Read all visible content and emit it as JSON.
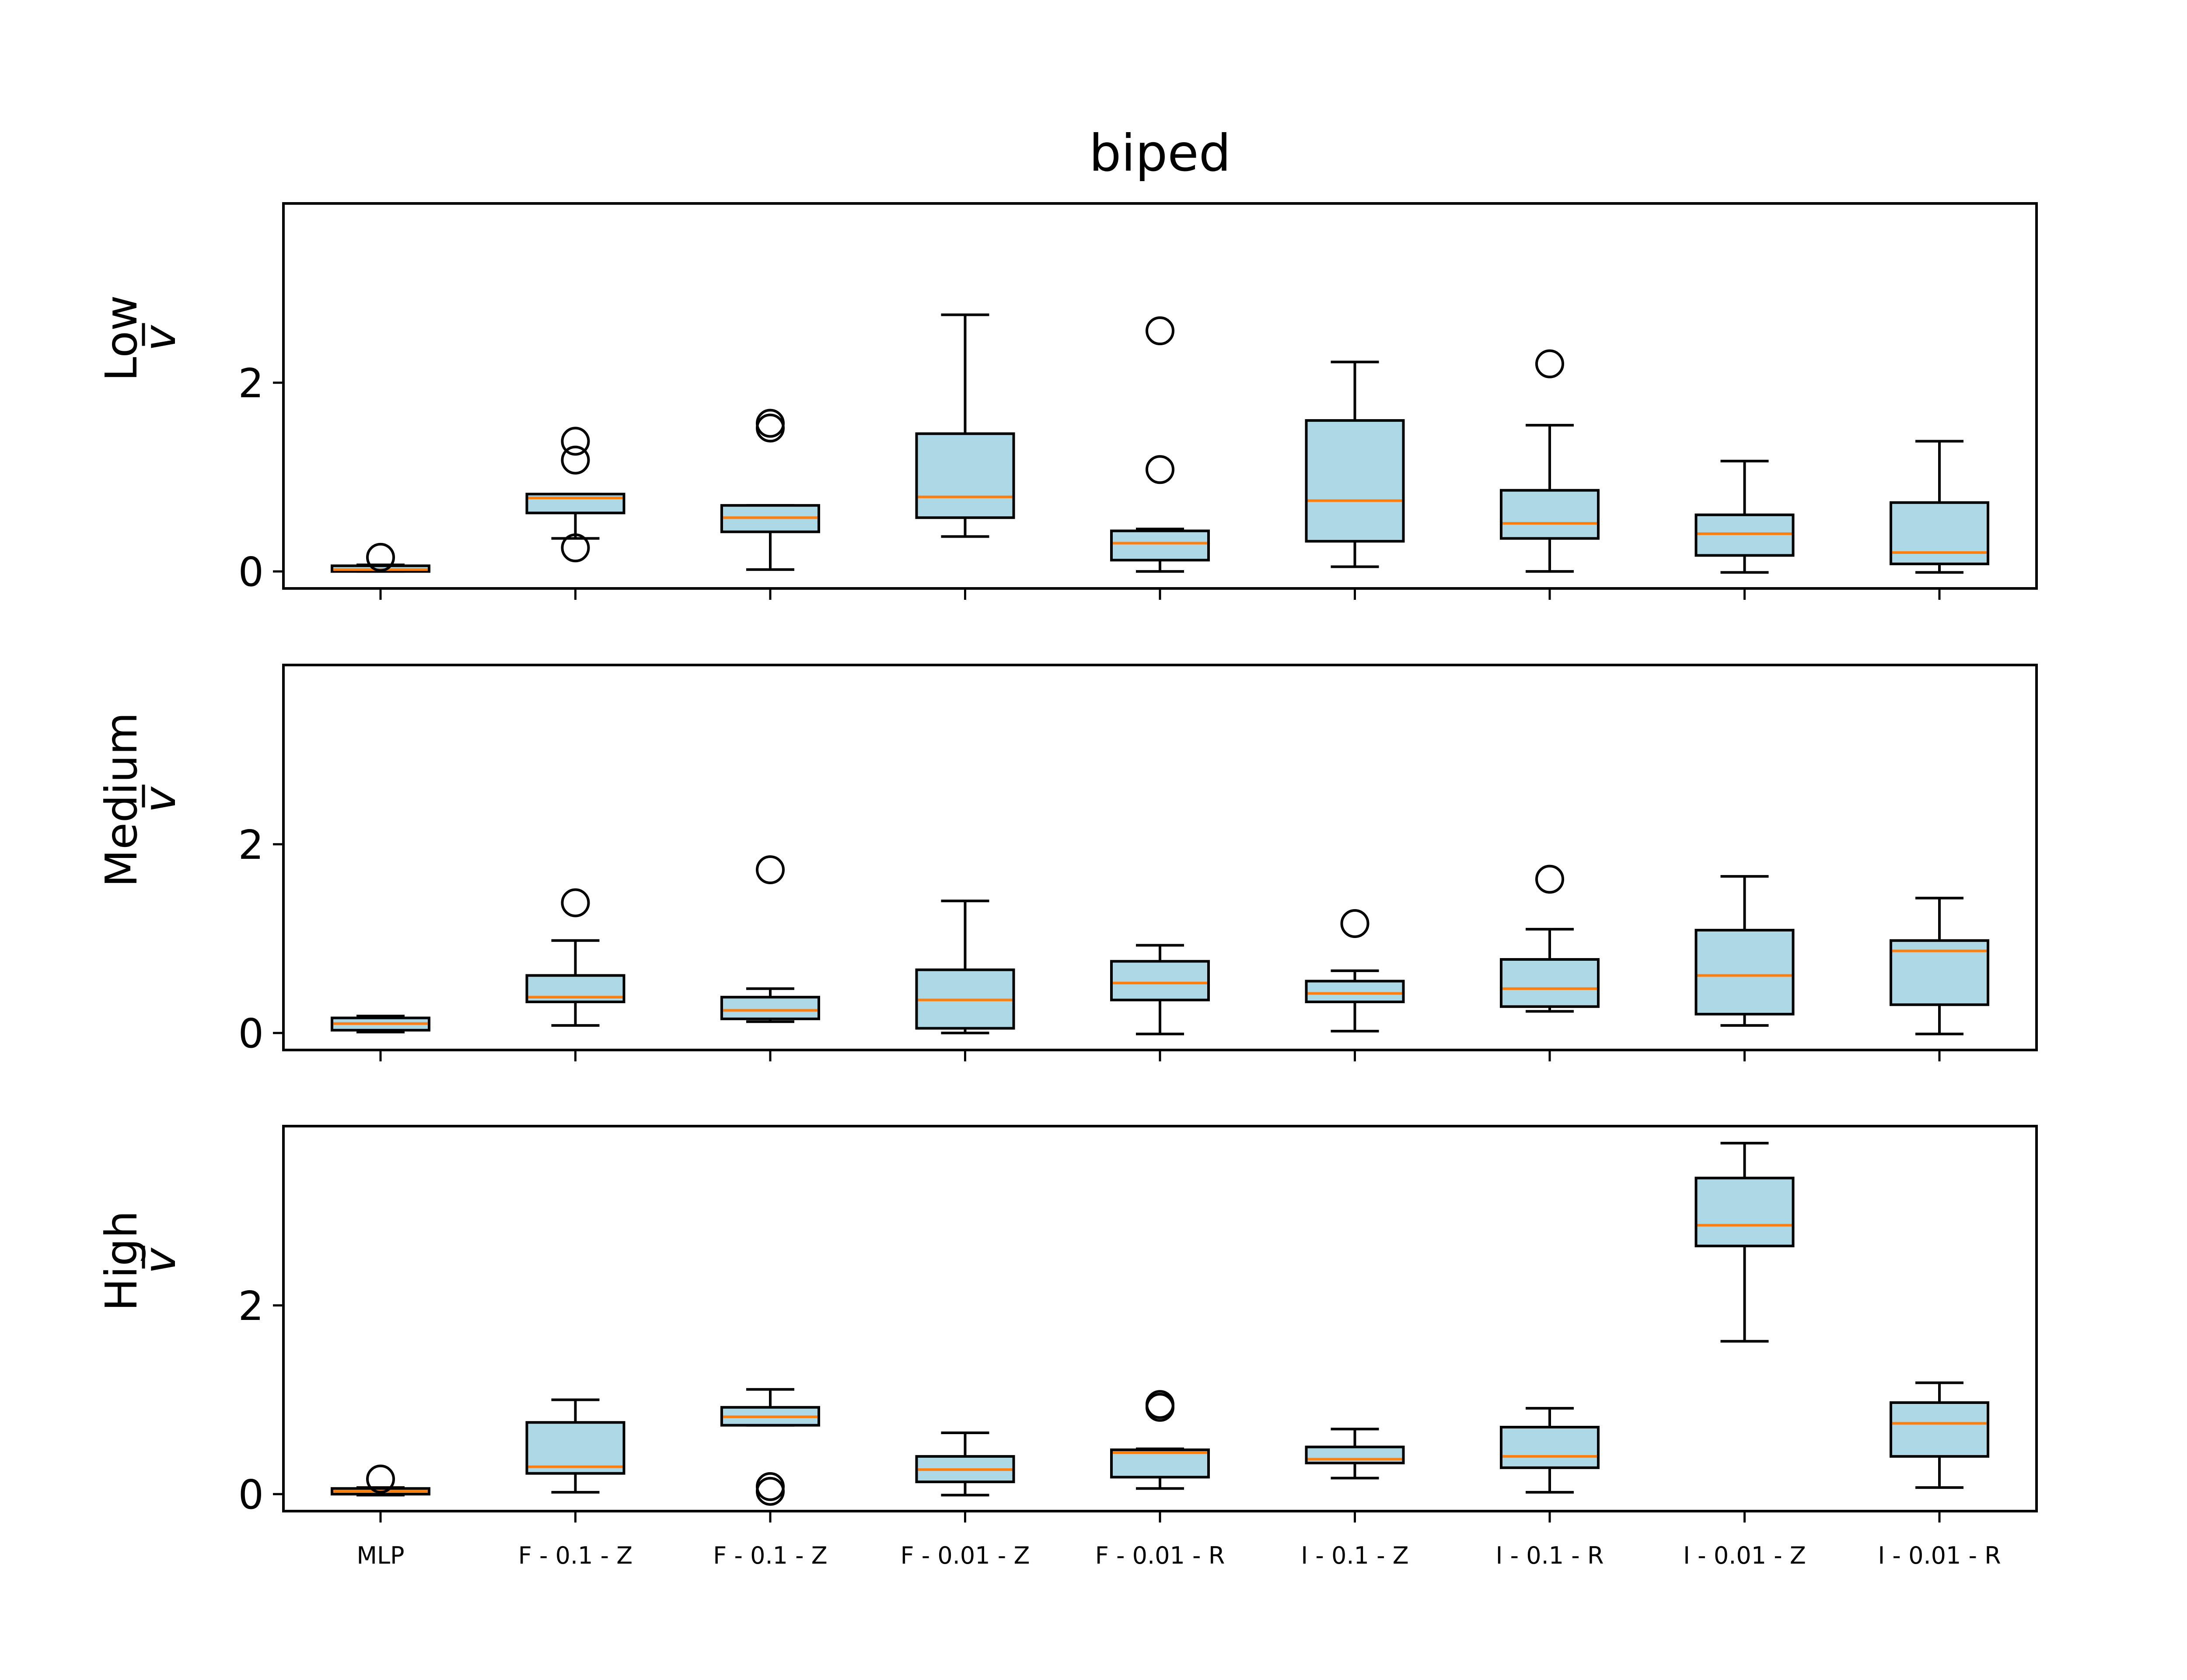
{
  "chart_data": {
    "type": "boxplot",
    "title": "biped",
    "categories": [
      "MLP",
      "F - 0.1 - Z",
      "F - 0.1 - Z",
      "F - 0.01 - Z",
      "F - 0.01 - R",
      "I - 0.1 - Z",
      "I - 0.1 - R",
      "I - 0.01 - Z",
      "I - 0.01 - R"
    ],
    "ylim": [
      -0.18,
      3.9
    ],
    "yticks": [
      0,
      2
    ],
    "grid": false,
    "colors": {
      "box_fill": "#add8e6",
      "median": "#ff7f0e",
      "edge": "#000000"
    },
    "panels": [
      {
        "label": "Low",
        "sublabel": "v̅",
        "boxes": [
          {
            "whislo": 0.0,
            "q1": 0.0,
            "med": 0.02,
            "q3": 0.06,
            "whishi": 0.07,
            "fliers": [
              0.15
            ]
          },
          {
            "whislo": 0.35,
            "q1": 0.62,
            "med": 0.78,
            "q3": 0.82,
            "whishi": 0.82,
            "fliers": [
              1.38,
              1.18,
              0.25
            ]
          },
          {
            "whislo": 0.02,
            "q1": 0.42,
            "med": 0.57,
            "q3": 0.7,
            "whishi": 0.7,
            "fliers": [
              1.57,
              1.52
            ]
          },
          {
            "whislo": 0.37,
            "q1": 0.57,
            "med": 0.79,
            "q3": 1.46,
            "whishi": 2.72,
            "fliers": []
          },
          {
            "whislo": 0.0,
            "q1": 0.12,
            "med": 0.3,
            "q3": 0.43,
            "whishi": 0.45,
            "fliers": [
              2.55,
              1.08
            ]
          },
          {
            "whislo": 0.05,
            "q1": 0.32,
            "med": 0.75,
            "q3": 1.6,
            "whishi": 2.22,
            "fliers": []
          },
          {
            "whislo": 0.0,
            "q1": 0.35,
            "med": 0.51,
            "q3": 0.86,
            "whishi": 1.55,
            "fliers": [
              2.2
            ]
          },
          {
            "whislo": -0.01,
            "q1": 0.17,
            "med": 0.4,
            "q3": 0.6,
            "whishi": 1.17,
            "fliers": []
          },
          {
            "whislo": -0.01,
            "q1": 0.08,
            "med": 0.2,
            "q3": 0.73,
            "whishi": 1.38,
            "fliers": []
          }
        ]
      },
      {
        "label": "Medium",
        "sublabel": "v̅",
        "boxes": [
          {
            "whislo": 0.01,
            "q1": 0.03,
            "med": 0.1,
            "q3": 0.16,
            "whishi": 0.18,
            "fliers": []
          },
          {
            "whislo": 0.08,
            "q1": 0.33,
            "med": 0.38,
            "q3": 0.61,
            "whishi": 0.98,
            "fliers": [
              1.38
            ]
          },
          {
            "whislo": 0.12,
            "q1": 0.15,
            "med": 0.24,
            "q3": 0.38,
            "whishi": 0.47,
            "fliers": [
              1.73
            ]
          },
          {
            "whislo": 0.0,
            "q1": 0.05,
            "med": 0.35,
            "q3": 0.67,
            "whishi": 1.4,
            "fliers": []
          },
          {
            "whislo": -0.01,
            "q1": 0.35,
            "med": 0.53,
            "q3": 0.76,
            "whishi": 0.93,
            "fliers": []
          },
          {
            "whislo": 0.02,
            "q1": 0.33,
            "med": 0.42,
            "q3": 0.55,
            "whishi": 0.66,
            "fliers": [
              1.16
            ]
          },
          {
            "whislo": 0.23,
            "q1": 0.28,
            "med": 0.47,
            "q3": 0.78,
            "whishi": 1.1,
            "fliers": [
              1.63
            ]
          },
          {
            "whislo": 0.08,
            "q1": 0.2,
            "med": 0.61,
            "q3": 1.09,
            "whishi": 1.66,
            "fliers": []
          },
          {
            "whislo": -0.01,
            "q1": 0.3,
            "med": 0.87,
            "q3": 0.98,
            "whishi": 1.43,
            "fliers": []
          }
        ]
      },
      {
        "label": "High",
        "sublabel": "v̅",
        "boxes": [
          {
            "whislo": -0.01,
            "q1": 0.0,
            "med": 0.03,
            "q3": 0.06,
            "whishi": 0.07,
            "fliers": [
              0.16
            ]
          },
          {
            "whislo": 0.02,
            "q1": 0.22,
            "med": 0.29,
            "q3": 0.76,
            "whishi": 1.0,
            "fliers": []
          },
          {
            "whislo": 0.73,
            "q1": 0.73,
            "med": 0.82,
            "q3": 0.92,
            "whishi": 1.11,
            "fliers": [
              0.08,
              0.03
            ]
          },
          {
            "whislo": -0.01,
            "q1": 0.13,
            "med": 0.26,
            "q3": 0.4,
            "whishi": 0.65,
            "fliers": []
          },
          {
            "whislo": 0.06,
            "q1": 0.18,
            "med": 0.44,
            "q3": 0.47,
            "whishi": 0.48,
            "fliers": [
              0.95,
              0.92
            ]
          },
          {
            "whislo": 0.17,
            "q1": 0.33,
            "med": 0.37,
            "q3": 0.5,
            "whishi": 0.69,
            "fliers": []
          },
          {
            "whislo": 0.02,
            "q1": 0.28,
            "med": 0.4,
            "q3": 0.71,
            "whishi": 0.91,
            "fliers": []
          },
          {
            "whislo": 1.62,
            "q1": 2.63,
            "med": 2.85,
            "q3": 3.35,
            "whishi": 3.72,
            "fliers": []
          },
          {
            "whislo": 0.07,
            "q1": 0.4,
            "med": 0.75,
            "q3": 0.97,
            "whishi": 1.18,
            "fliers": []
          }
        ]
      }
    ]
  }
}
